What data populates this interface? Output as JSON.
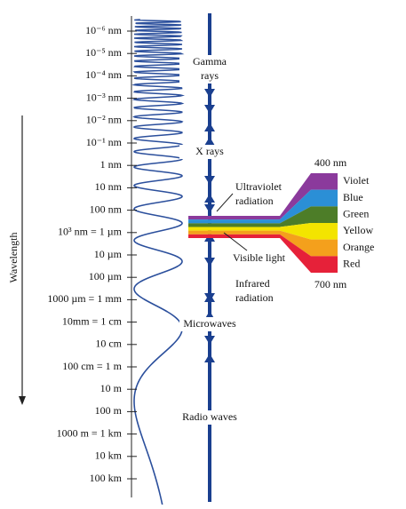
{
  "axis_label": "Wavelength",
  "wavelengths": [
    "10⁻⁶ nm",
    "10⁻⁵ nm",
    "10⁻⁴ nm",
    "10⁻³ nm",
    "10⁻² nm",
    "10⁻¹ nm",
    "1 nm",
    "10 nm",
    "100 nm",
    "10³ nm = 1 µm",
    "10 µm",
    "100 µm",
    "1000 µm = 1 mm",
    "10mm = 1 cm",
    "10 cm",
    "100 cm = 1 m",
    "10 m",
    "100 m",
    "1000 m = 1 km",
    "10 km",
    "100 km"
  ],
  "regions": [
    {
      "lines": [
        "Gamma",
        "rays"
      ]
    },
    {
      "lines": [
        "X rays"
      ]
    },
    {
      "lines": [
        "Ultraviolet",
        "radiation"
      ]
    },
    {
      "lines": [
        "Visible light"
      ]
    },
    {
      "lines": [
        "Infrared",
        "radiation"
      ]
    },
    {
      "lines": [
        "Microwaves"
      ]
    },
    {
      "lines": [
        "Radio waves"
      ]
    }
  ],
  "spectrum": {
    "short_end": "400 nm",
    "long_end": "700 nm",
    "colors": [
      {
        "name": "Violet",
        "color": "#8b3a9c"
      },
      {
        "name": "Blue",
        "color": "#2b8fd6"
      },
      {
        "name": "Green",
        "color": "#4d7d28"
      },
      {
        "name": "Yellow",
        "color": "#f3e400"
      },
      {
        "name": "Orange",
        "color": "#f4a01c"
      },
      {
        "name": "Red",
        "color": "#e62139"
      }
    ]
  }
}
